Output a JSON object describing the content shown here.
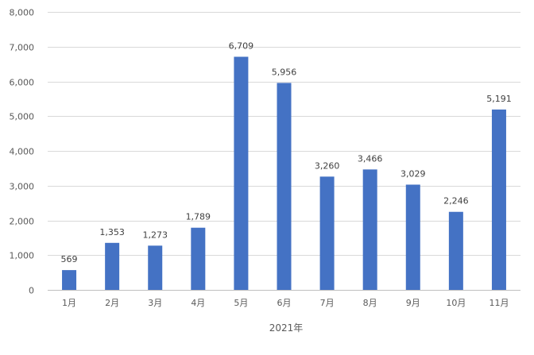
{
  "chart_data": {
    "type": "bar",
    "categories": [
      "1月",
      "2月",
      "3月",
      "4月",
      "5月",
      "6月",
      "7月",
      "8月",
      "9月",
      "10月",
      "11月"
    ],
    "values": [
      569,
      1353,
      1273,
      1789,
      6709,
      5956,
      3260,
      3466,
      3029,
      2246,
      5191
    ],
    "data_labels": [
      "569",
      "1,353",
      "1,273",
      "1,789",
      "6,709",
      "5,956",
      "3,260",
      "3,466",
      "3,029",
      "2,246",
      "5,191"
    ],
    "y_ticks": [
      0,
      1000,
      2000,
      3000,
      4000,
      5000,
      6000,
      7000,
      8000
    ],
    "y_tick_labels": [
      "0",
      "1,000",
      "2,000",
      "3,000",
      "4,000",
      "5,000",
      "6,000",
      "7,000",
      "8,000"
    ],
    "title": "",
    "xlabel": "2021年",
    "ylabel": "",
    "ylim": [
      0,
      8000
    ],
    "grid": true,
    "legend": "none",
    "bar_color": "#4472c4"
  }
}
